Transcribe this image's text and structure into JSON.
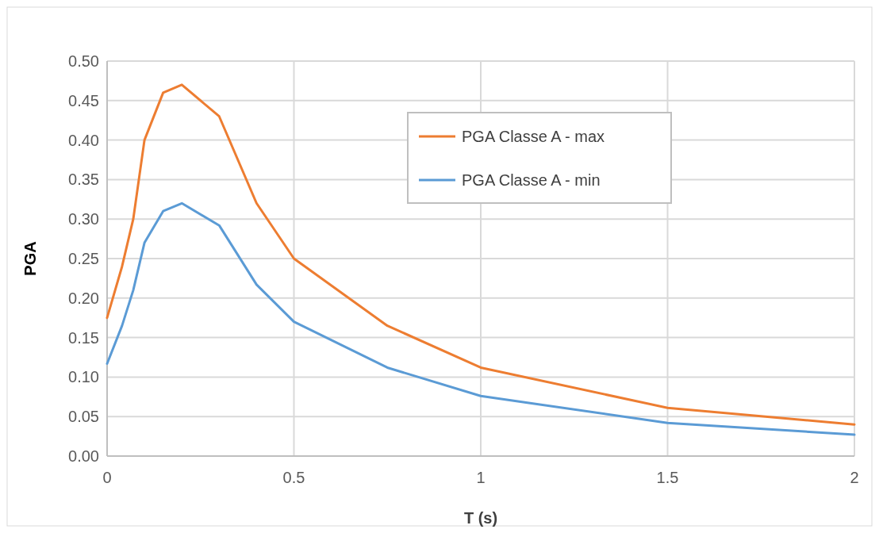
{
  "chart_data": {
    "type": "line",
    "xlabel": "T (s)",
    "ylabel": "PGA",
    "x": [
      0,
      0.04,
      0.07,
      0.1,
      0.15,
      0.2,
      0.3,
      0.4,
      0.5,
      0.75,
      1,
      1.5,
      2
    ],
    "series": [
      {
        "name": "PGA Classe A - max",
        "color": "#ed7d31",
        "values": [
          0.175,
          0.24,
          0.3,
          0.4,
          0.46,
          0.47,
          0.43,
          0.32,
          0.25,
          0.165,
          0.112,
          0.061,
          0.04
        ]
      },
      {
        "name": "PGA Classe A - min",
        "color": "#5b9bd5",
        "values": [
          0.117,
          0.165,
          0.21,
          0.27,
          0.31,
          0.32,
          0.292,
          0.217,
          0.17,
          0.112,
          0.076,
          0.042,
          0.027
        ]
      }
    ],
    "xlim": [
      0,
      2
    ],
    "xticks": [
      0,
      0.5,
      1,
      1.5,
      2
    ],
    "ylim": [
      0,
      0.5
    ],
    "yticks": [
      {
        "value": 0,
        "label": "0.00"
      },
      {
        "value": 0.05,
        "label": "0.05"
      },
      {
        "value": 0.1,
        "label": "0.10"
      },
      {
        "value": 0.15,
        "label": "0.15"
      },
      {
        "value": 0.2,
        "label": "0.20"
      },
      {
        "value": 0.25,
        "label": "0.25"
      },
      {
        "value": 0.3,
        "label": "0.30"
      },
      {
        "value": 0.35,
        "label": "0.35"
      },
      {
        "value": 0.4,
        "label": "0.40"
      },
      {
        "value": 0.45,
        "label": "0.45"
      },
      {
        "value": 0.5,
        "label": "0.50"
      }
    ],
    "grid": true,
    "legend": "top right",
    "marker": "none",
    "line_style": "solid"
  }
}
